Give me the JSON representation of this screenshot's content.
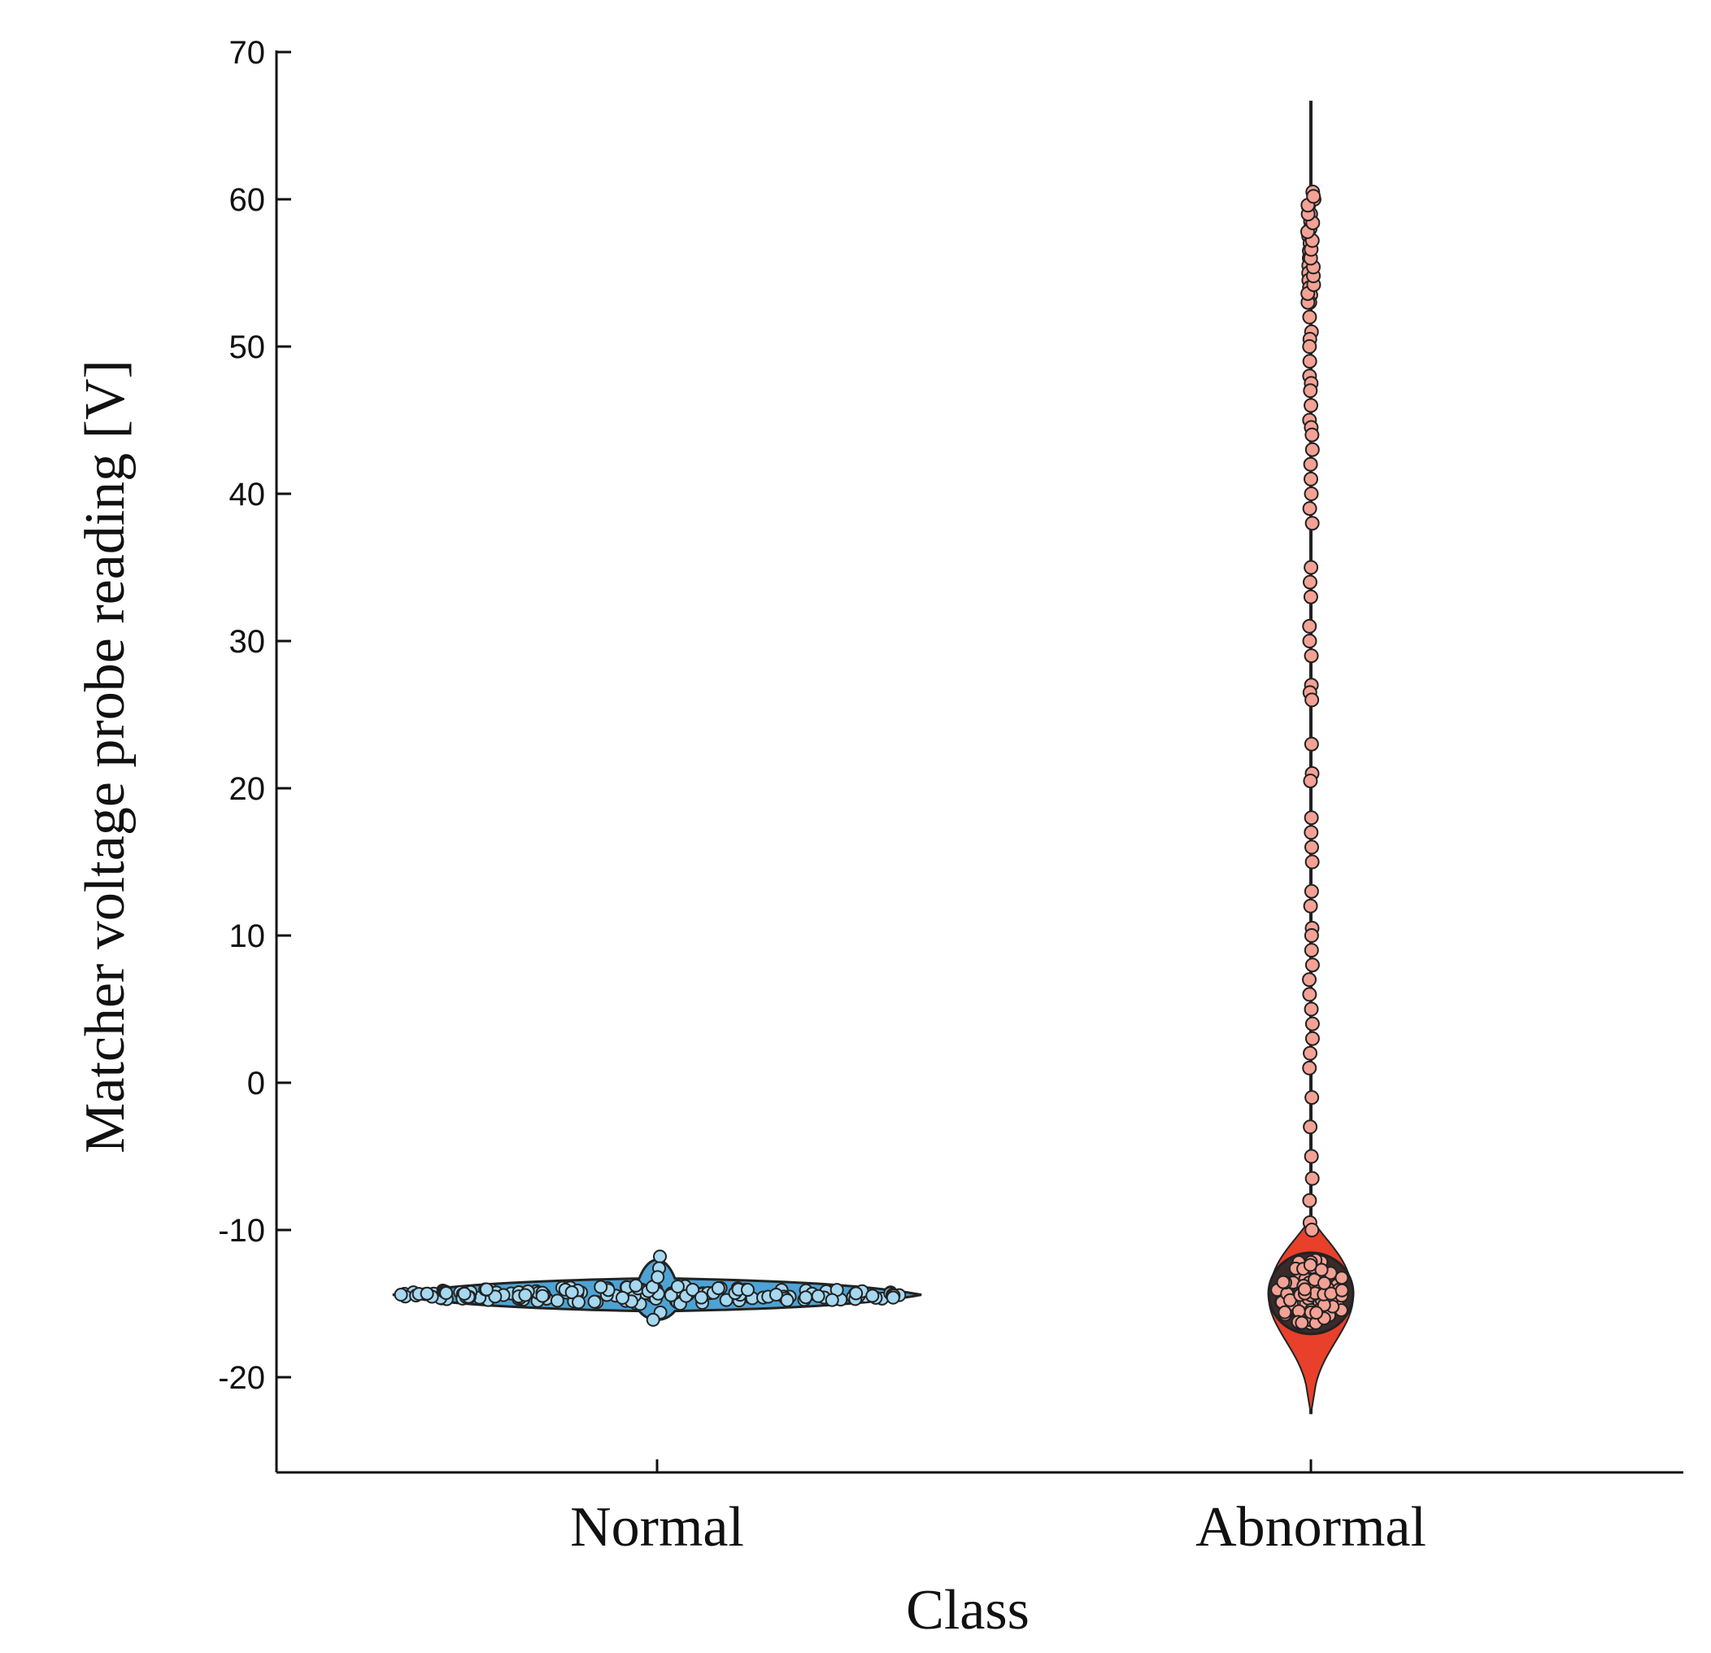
{
  "chart_data": {
    "type": "violin-swarm",
    "xlabel": "Class",
    "ylabel": "Matcher voltage probe reading [V]",
    "ylim": [
      -27,
      71
    ],
    "yticks": [
      -20,
      -10,
      0,
      10,
      20,
      30,
      40,
      50,
      60,
      70
    ],
    "ytick_labels": [
      "-20",
      "-10",
      "0",
      "10",
      "20",
      "30",
      "40",
      "50",
      "60",
      "70"
    ],
    "categories": [
      "Normal",
      "Abnormal"
    ],
    "grid": false,
    "colors": {
      "Normal": {
        "point": "#a6d8f0",
        "violin": "#4da3d4",
        "edge": "#222222"
      },
      "Abnormal": {
        "point": "#f3a295",
        "violin": "#e8402a",
        "edge": "#222222"
      }
    },
    "series": [
      {
        "category": "Normal",
        "min": -16.3,
        "max": -11.6,
        "median": -14.4,
        "point_count_estimate": 170,
        "spread_range_x": [
          -14.8,
          -13.9
        ]
      },
      {
        "category": "Abnormal",
        "min": -22.5,
        "max": 66.7,
        "median": -14.3,
        "cluster_range": [
          -17.0,
          -11.0
        ],
        "upper_points": [
          60.5,
          60.0,
          59.5,
          59.0,
          58.5,
          58.0,
          57.5,
          57.0,
          56.5,
          56.0,
          55.5,
          55.0,
          54.5,
          54.0,
          53.5,
          53.0,
          52.0,
          51.0,
          50.5,
          50.0,
          49.0,
          48.0,
          47.5,
          47.0,
          46.0,
          45.0,
          44.5,
          44.0,
          43.0,
          42.0,
          41.0,
          40.0,
          39.0,
          38.0,
          35.0,
          34.0,
          33.0,
          31.0,
          30.0,
          29.0,
          27.0,
          26.5,
          26.0,
          23.0,
          21.0,
          20.5,
          18.0,
          17.0,
          16.0,
          15.0,
          13.0,
          12.0,
          10.5,
          10.0,
          9.0,
          8.0,
          7.0,
          6.0,
          5.0,
          4.0,
          3.0,
          2.0,
          1.0,
          -1.0,
          -3.0,
          -5.0,
          -6.5,
          -8.0,
          -9.5,
          -10.0
        ]
      }
    ]
  }
}
